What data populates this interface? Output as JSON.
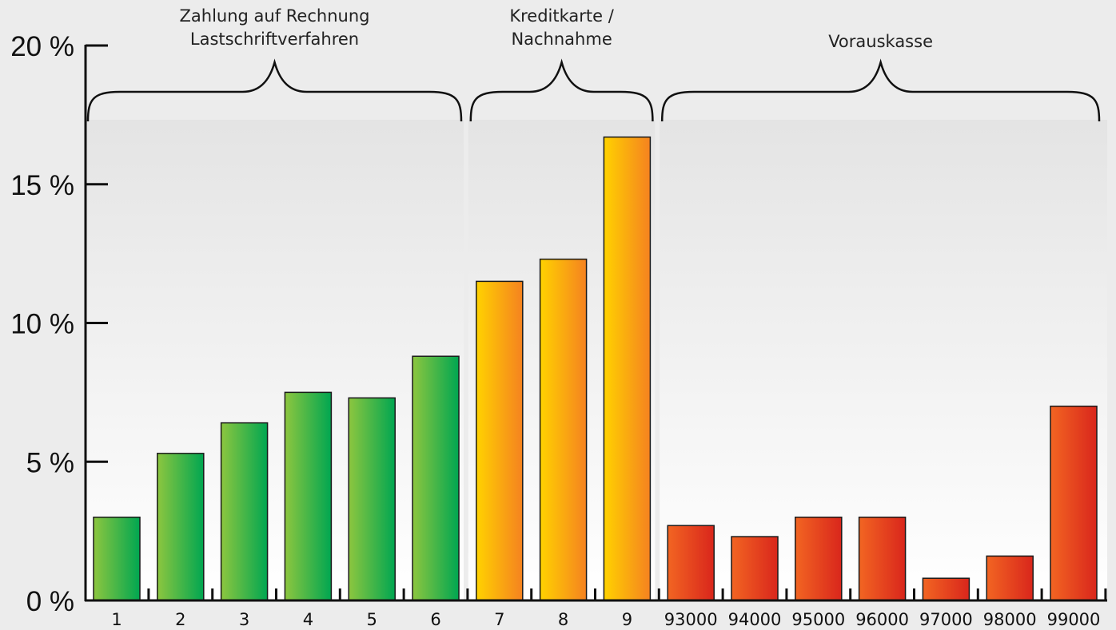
{
  "chart_data": {
    "type": "bar",
    "categories": [
      "1",
      "2",
      "3",
      "4",
      "5",
      "6",
      "7",
      "8",
      "9",
      "93000",
      "94000",
      "95000",
      "96000",
      "97000",
      "98000",
      "99000"
    ],
    "values": [
      3.0,
      5.3,
      6.4,
      7.5,
      7.3,
      8.8,
      11.5,
      12.3,
      16.7,
      2.7,
      2.3,
      3.0,
      3.0,
      0.8,
      1.6,
      7.0
    ],
    "ylim": [
      0,
      20
    ],
    "yticks": [
      0,
      5,
      10,
      15,
      20
    ],
    "ytick_labels": [
      "0 %",
      "5 %",
      "10 %",
      "15 %",
      "20 %"
    ],
    "grid": false,
    "groups": [
      {
        "label_lines": [
          "Zahlung auf Rechnung",
          "Lastschriftverfahren"
        ],
        "categories": [
          "1",
          "2",
          "3",
          "4",
          "5",
          "6"
        ],
        "colors": [
          "#8dc63f",
          "#00a651"
        ]
      },
      {
        "label_lines": [
          "Kreditkarte /",
          "Nachnahme"
        ],
        "categories": [
          "7",
          "8",
          "9"
        ],
        "colors": [
          "#ffd200",
          "#f58220"
        ]
      },
      {
        "label_lines": [
          "Vorauskasse"
        ],
        "categories": [
          "93000",
          "94000",
          "95000",
          "96000",
          "97000",
          "98000",
          "99000"
        ],
        "colors": [
          "#f26522",
          "#d9261c"
        ]
      }
    ]
  }
}
